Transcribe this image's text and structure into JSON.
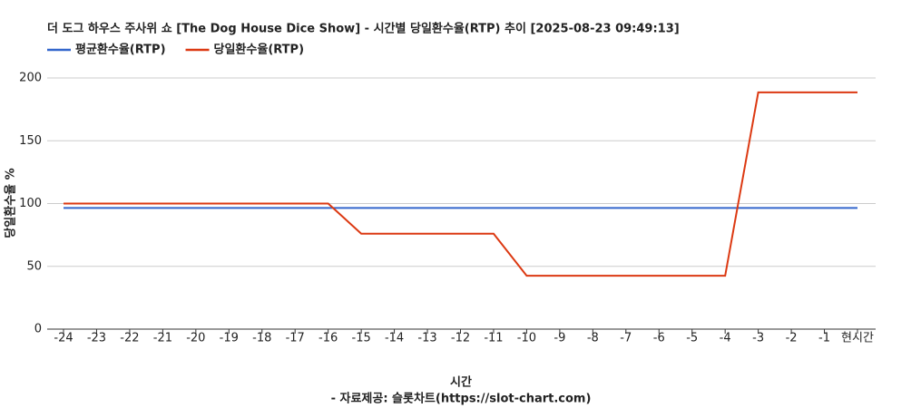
{
  "chart_data": {
    "type": "line",
    "title": "더 도그 하우스 주사위 쇼 [The Dog House Dice Show] - 시간별 당일환수율(RTP) 추이 [2025-08-23 09:49:13]",
    "x_label": "시간",
    "source": "- 자료제공: 슬롯차트(https://slot-chart.com)",
    "y_label": "당일환수율 %",
    "categories": [
      "-24",
      "-23",
      "-22",
      "-21",
      "-20",
      "-19",
      "-18",
      "-17",
      "-16",
      "-15",
      "-14",
      "-13",
      "-12",
      "-11",
      "-10",
      "-9",
      "-8",
      "-7",
      "-6",
      "-5",
      "-4",
      "-3",
      "-2",
      "-1",
      "현시간"
    ],
    "series": [
      {
        "name": "평균환수율(RTP)",
        "color": "#3366cc",
        "values": [
          96.5,
          96.5,
          96.5,
          96.5,
          96.5,
          96.5,
          96.5,
          96.5,
          96.5,
          96.5,
          96.5,
          96.5,
          96.5,
          96.5,
          96.5,
          96.5,
          96.5,
          96.5,
          96.5,
          96.5,
          96.5,
          96.5,
          96.5,
          96.5,
          96.5
        ]
      },
      {
        "name": "당일환수율(RTP)",
        "color": "#dc3912",
        "values": [
          100,
          100,
          100,
          100,
          100,
          100,
          100,
          100,
          100,
          76,
          76,
          76,
          76,
          76,
          42.5,
          42.5,
          42.5,
          42.5,
          42.5,
          42.5,
          42.5,
          188.5,
          188.5,
          188.5,
          188.5
        ]
      }
    ],
    "ylim": [
      0,
      200
    ],
    "yticks": [
      0,
      50,
      100,
      150,
      200
    ],
    "grid": true,
    "legend": "top-left"
  }
}
